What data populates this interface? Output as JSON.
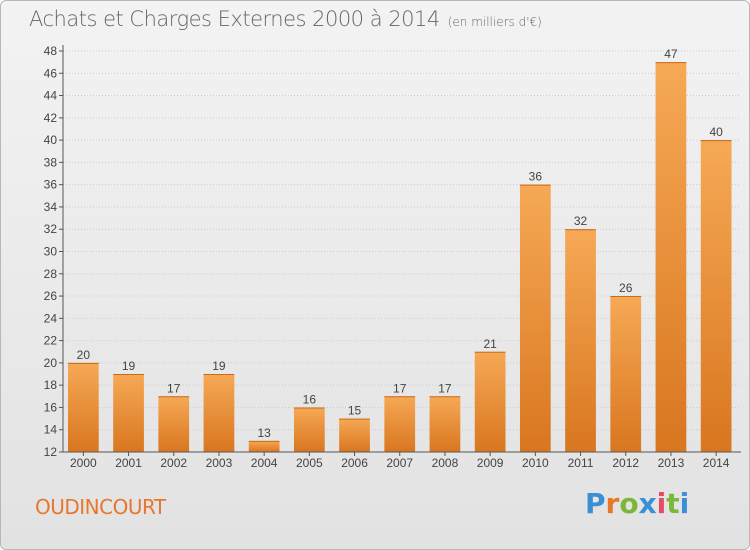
{
  "header": {
    "title": "Achats et Charges Externes 2000 à 2014",
    "subtitle": "(en milliers d'€)"
  },
  "footer": {
    "commune": "OUDINCOURT",
    "brand": "Proxiti",
    "brand_colors": [
      "#3a8fd6",
      "#e8772e",
      "#7bb83a",
      "#3a8fd6",
      "#e84a5f",
      "#7bb83a",
      "#3a8fd6"
    ]
  },
  "colors": {
    "bar_light": "#f6a955",
    "bar_dark": "#d97620",
    "axis": "#555555",
    "grid": "#cccccc"
  },
  "chart_data": {
    "type": "bar",
    "categories": [
      "2000",
      "2001",
      "2002",
      "2003",
      "2004",
      "2005",
      "2006",
      "2007",
      "2008",
      "2009",
      "2010",
      "2011",
      "2012",
      "2013",
      "2014"
    ],
    "values": [
      20,
      19,
      17,
      19,
      13,
      16,
      15,
      17,
      17,
      21,
      36,
      32,
      26,
      47,
      40
    ],
    "ylim": [
      12,
      48
    ],
    "yticks": [
      12,
      14,
      16,
      18,
      20,
      22,
      24,
      26,
      28,
      30,
      32,
      34,
      36,
      38,
      40,
      42,
      44,
      46,
      48
    ],
    "xlabel": "",
    "ylabel": "",
    "grid": true
  }
}
